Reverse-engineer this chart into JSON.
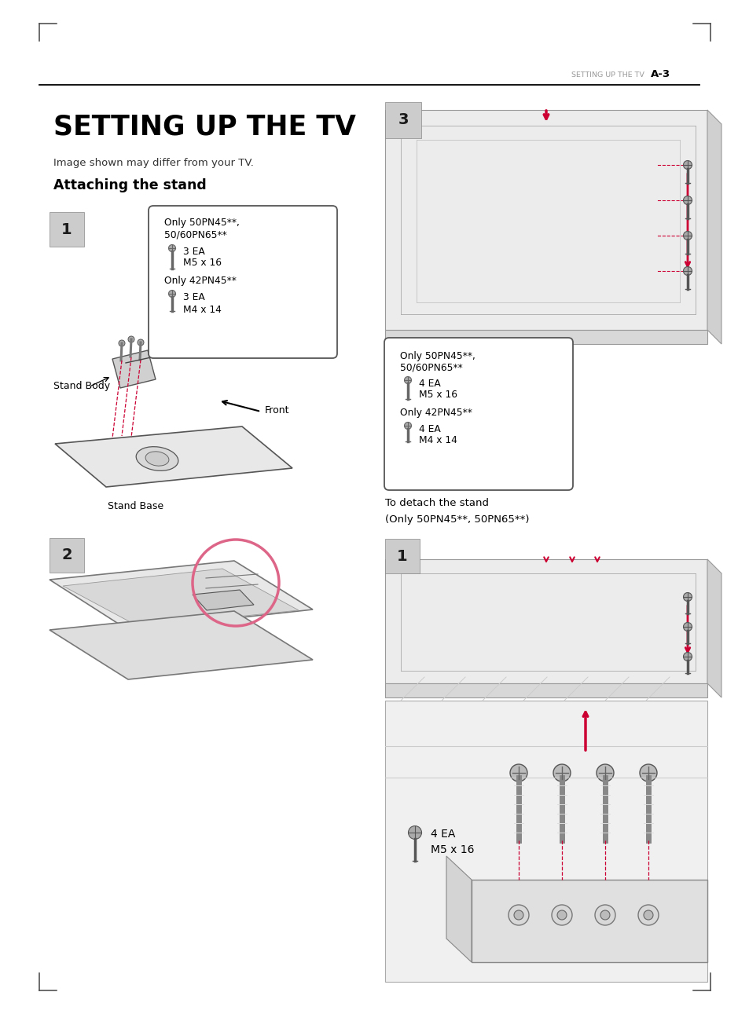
{
  "page_bg": "#ffffff",
  "header_text_left": "SETTING UP THE TV",
  "header_text_right": "A-3",
  "main_title": "SETTING UP THE TV",
  "image_note": "Image shown may differ from your TV.",
  "section_heading": "Attaching the stand",
  "detach_text1": "To detach the stand",
  "detach_text2": "(Only 50PN45**, 50PN65**)",
  "label_stand_body": "Stand Body",
  "label_front": "Front",
  "label_stand_base": "Stand Base",
  "bottom_label1": "4 EA",
  "bottom_label2": "M5 x 16",
  "accent_red": "#cc0033",
  "dark": "#1a1a1a",
  "mid_gray": "#888888",
  "light_gray": "#cccccc",
  "box_border": "#555555"
}
